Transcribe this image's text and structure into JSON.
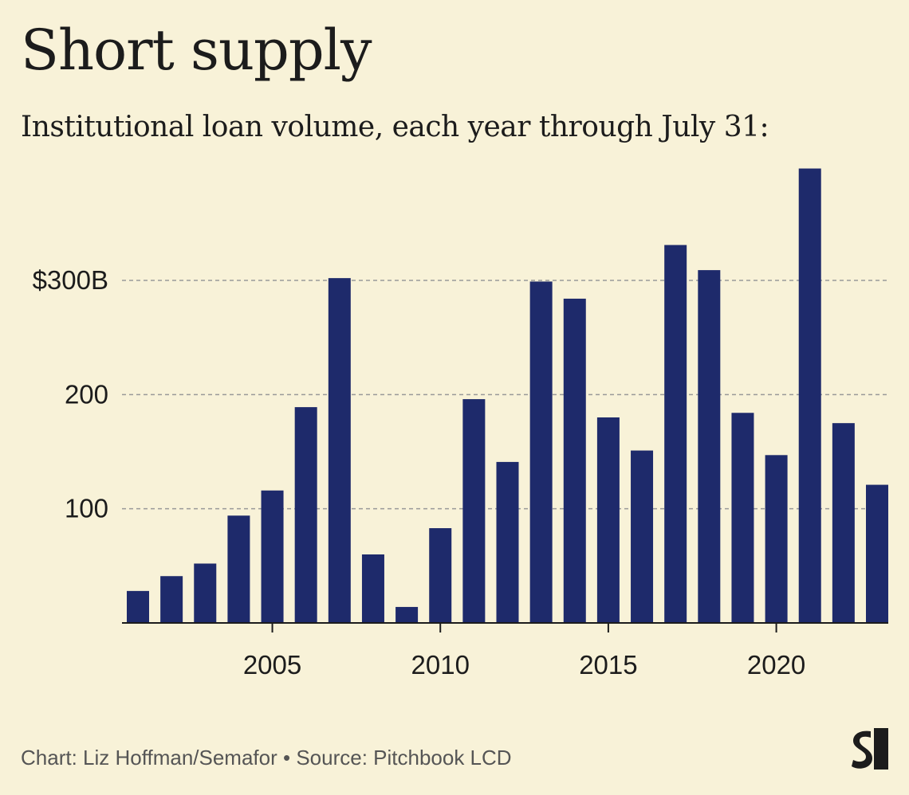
{
  "title": "Short supply",
  "subtitle": "Institutional loan volume, each year through July 31:",
  "footer": "Chart: Liz Hoffman/Semafor • Source: Pitchbook LCD",
  "colors": {
    "background": "#f8f2d8",
    "bar": "#1e2a6b",
    "grid": "#999999",
    "text": "#1c1c1c"
  },
  "logo": {
    "icon": "semafor-logo-icon"
  },
  "chart_data": {
    "type": "bar",
    "title": "Short supply",
    "subtitle": "Institutional loan volume, each year through July 31:",
    "xlabel": "",
    "ylabel": "",
    "categories": [
      2001,
      2002,
      2003,
      2004,
      2005,
      2006,
      2007,
      2008,
      2009,
      2010,
      2011,
      2012,
      2013,
      2014,
      2015,
      2016,
      2017,
      2018,
      2019,
      2020,
      2021,
      2022,
      2023
    ],
    "values": [
      28,
      41,
      52,
      94,
      116,
      189,
      302,
      60,
      14,
      83,
      196,
      141,
      299,
      284,
      180,
      151,
      331,
      309,
      184,
      147,
      398,
      175,
      121
    ],
    "x_ticks": [
      {
        "value": 2005,
        "label": "2005"
      },
      {
        "value": 2010,
        "label": "2010"
      },
      {
        "value": 2015,
        "label": "2015"
      },
      {
        "value": 2020,
        "label": "2020"
      }
    ],
    "y_ticks": [
      {
        "value": 100,
        "label": "100"
      },
      {
        "value": 200,
        "label": "200"
      },
      {
        "value": 300,
        "label": "$300B"
      }
    ],
    "ylim": [
      0,
      400
    ],
    "grid": true
  }
}
